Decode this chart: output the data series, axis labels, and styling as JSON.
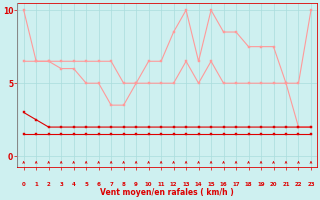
{
  "x": [
    0,
    1,
    2,
    3,
    4,
    5,
    6,
    7,
    8,
    9,
    10,
    11,
    12,
    13,
    14,
    15,
    16,
    17,
    18,
    19,
    20,
    21,
    22,
    23
  ],
  "line1": [
    10,
    6.5,
    6.5,
    6.5,
    6.5,
    6.5,
    6.5,
    6.5,
    5.0,
    5.0,
    6.5,
    6.5,
    8.5,
    10.0,
    6.5,
    10.0,
    8.5,
    8.5,
    7.5,
    7.5,
    7.5,
    5.0,
    5.0,
    10.0
  ],
  "line2": [
    6.5,
    6.5,
    6.5,
    6.0,
    6.0,
    5.0,
    5.0,
    3.5,
    3.5,
    5.0,
    5.0,
    5.0,
    5.0,
    6.5,
    5.0,
    6.5,
    5.0,
    5.0,
    5.0,
    5.0,
    5.0,
    5.0,
    2.0,
    2.0
  ],
  "line3": [
    3.0,
    2.5,
    2.0,
    2.0,
    2.0,
    2.0,
    2.0,
    2.0,
    2.0,
    2.0,
    2.0,
    2.0,
    2.0,
    2.0,
    2.0,
    2.0,
    2.0,
    2.0,
    2.0,
    2.0,
    2.0,
    2.0,
    2.0,
    2.0
  ],
  "line4": [
    1.5,
    1.5,
    1.5,
    1.5,
    1.5,
    1.5,
    1.5,
    1.5,
    1.5,
    1.5,
    1.5,
    1.5,
    1.5,
    1.5,
    1.5,
    1.5,
    1.5,
    1.5,
    1.5,
    1.5,
    1.5,
    1.5,
    1.5,
    1.5
  ],
  "bg": "#cef0f0",
  "grid_color": "#aadddd",
  "light": "#ff9999",
  "dark": "#dd0000",
  "xlabel": "Vent moyen/en rafales ( km/h )",
  "ylim_low": -0.7,
  "ylim_high": 10.5,
  "yticks": [
    0,
    5,
    10
  ],
  "marker_size": 2.0,
  "lw": 0.8
}
